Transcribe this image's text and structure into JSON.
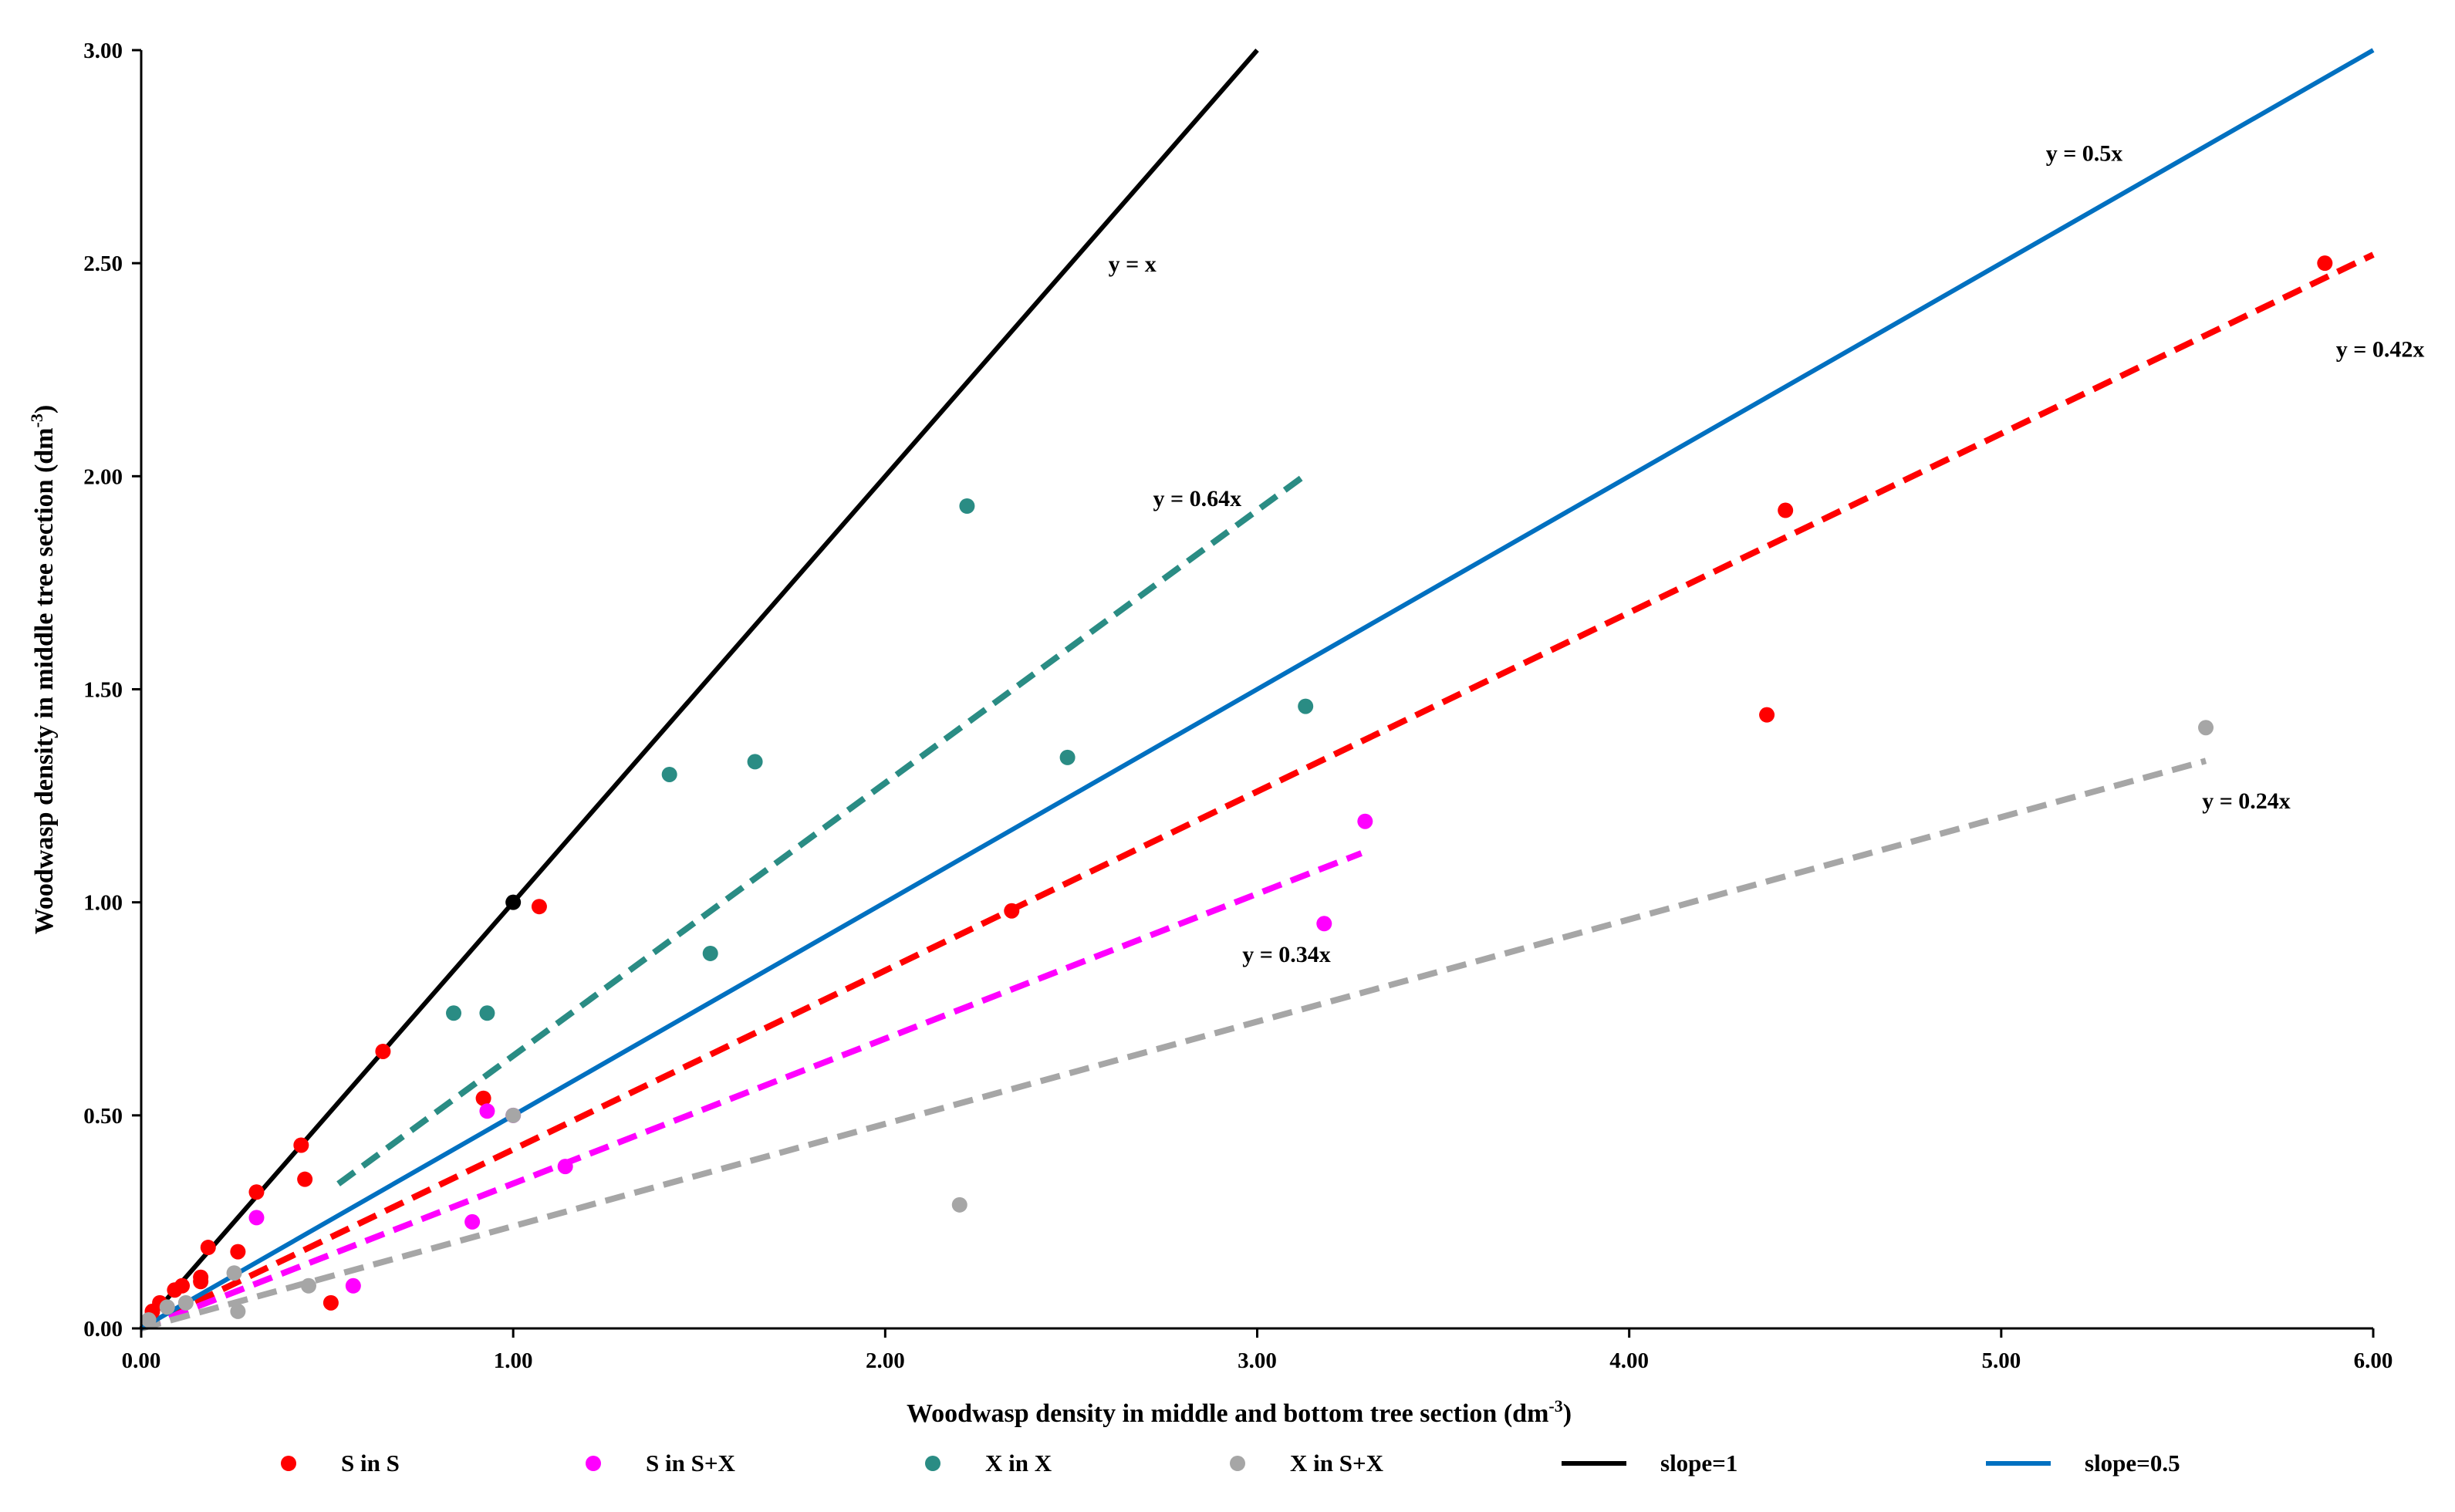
{
  "chart_data": {
    "type": "scatter",
    "xlabel": "Woodwasp density in middle and bottom tree section (dm",
    "ylabel": "Woodwasp density in middle tree section (dm",
    "unit_superscript": "-3",
    "unit_close": ")",
    "xlim": [
      0,
      6
    ],
    "ylim": [
      0,
      3
    ],
    "xticks": [
      0,
      1,
      2,
      3,
      4,
      5,
      6
    ],
    "xtick_labels": [
      "0.00",
      "1.00",
      "2.00",
      "3.00",
      "4.00",
      "5.00",
      "6.00"
    ],
    "yticks": [
      0,
      0.5,
      1,
      1.5,
      2,
      2.5,
      3
    ],
    "ytick_labels": [
      "0.00",
      "0.50",
      "1.00",
      "1.50",
      "2.00",
      "2.50",
      "3.00"
    ],
    "grid": false,
    "legend_position": "bottom",
    "series": [
      {
        "name": "S in S",
        "color": "#ff0000",
        "points": [
          [
            0.03,
            0.04
          ],
          [
            0.05,
            0.06
          ],
          [
            0.09,
            0.09
          ],
          [
            0.11,
            0.1
          ],
          [
            0.16,
            0.12
          ],
          [
            0.16,
            0.11
          ],
          [
            0.18,
            0.19
          ],
          [
            0.26,
            0.18
          ],
          [
            0.31,
            0.32
          ],
          [
            0.43,
            0.43
          ],
          [
            0.44,
            0.35
          ],
          [
            0.51,
            0.06
          ],
          [
            0.65,
            0.65
          ],
          [
            0.92,
            0.54
          ],
          [
            1.07,
            0.99
          ],
          [
            2.34,
            0.98
          ],
          [
            4.37,
            1.44
          ],
          [
            4.42,
            1.92
          ],
          [
            5.87,
            2.5
          ]
        ]
      },
      {
        "name": "S in S+X",
        "color": "#ff00ff",
        "points": [
          [
            0.31,
            0.26
          ],
          [
            0.57,
            0.1
          ],
          [
            0.89,
            0.25
          ],
          [
            0.93,
            0.51
          ],
          [
            1.0,
            0.5
          ],
          [
            1.14,
            0.38
          ],
          [
            3.18,
            0.95
          ],
          [
            3.29,
            1.19
          ]
        ]
      },
      {
        "name": "X in X",
        "color": "#2a8c84",
        "points": [
          [
            0.84,
            0.74
          ],
          [
            0.93,
            0.74
          ],
          [
            1.42,
            1.3
          ],
          [
            1.53,
            0.88
          ],
          [
            1.65,
            1.33
          ],
          [
            2.22,
            1.93
          ],
          [
            2.49,
            1.34
          ],
          [
            3.13,
            1.46
          ]
        ]
      },
      {
        "name": "X in S+X",
        "color": "#a6a6a6",
        "points": [
          [
            0.02,
            0.02
          ],
          [
            0.07,
            0.05
          ],
          [
            0.12,
            0.06
          ],
          [
            0.25,
            0.13
          ],
          [
            0.26,
            0.04
          ],
          [
            0.45,
            0.1
          ],
          [
            1.0,
            0.5
          ],
          [
            2.2,
            0.29
          ],
          [
            5.55,
            1.41
          ]
        ]
      },
      {
        "name": "slope=1",
        "color": "#000000",
        "type": "line",
        "slope": 1,
        "x_range": [
          0,
          3
        ],
        "marker_points": [
          [
            1,
            1
          ]
        ]
      },
      {
        "name": "slope=0.5",
        "color": "#0070c0",
        "type": "line",
        "slope": 0.5,
        "x_range": [
          0,
          6
        ]
      }
    ],
    "fit_lines": [
      {
        "label": "y = 0.64x",
        "color": "#2a8c84",
        "slope": 0.64,
        "x_range": [
          0.53,
          3.13
        ],
        "label_at": [
          2.72,
          1.93
        ]
      },
      {
        "label": "y = 0.42x",
        "color": "#ff0000",
        "slope": 0.42,
        "x_range": [
          0,
          6
        ],
        "label_at": [
          5.9,
          2.28
        ]
      },
      {
        "label": "y = 0.34x",
        "color": "#ff00ff",
        "slope": 0.34,
        "x_range": [
          0,
          3.28
        ],
        "label_at": [
          2.96,
          0.86
        ]
      },
      {
        "label": "y = 0.24x",
        "color": "#a6a6a6",
        "slope": 0.24,
        "x_range": [
          0,
          5.55
        ],
        "label_at": [
          5.54,
          1.22
        ]
      }
    ],
    "annotations": [
      {
        "text": "y = x",
        "at": [
          2.6,
          2.48
        ]
      },
      {
        "text": "y = 0.5x",
        "at": [
          5.12,
          2.74
        ]
      }
    ]
  }
}
